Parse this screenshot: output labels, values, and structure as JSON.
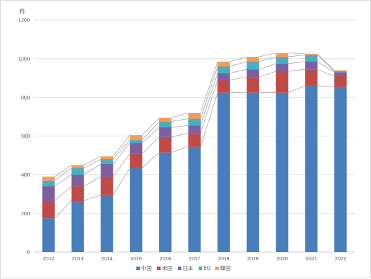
{
  "chart_data": {
    "type": "bar",
    "stacked": true,
    "title": "",
    "ylabel": "件",
    "xlabel": "",
    "ylim": [
      0,
      1200
    ],
    "yticks": [
      0,
      200,
      400,
      600,
      800,
      1000,
      1200
    ],
    "grid": true,
    "legend_position": "bottom",
    "connector_lines": true,
    "categories": [
      "2012",
      "2013",
      "2014",
      "2015",
      "2016",
      "2017",
      "2018",
      "2019",
      "2020",
      "2021",
      "2022"
    ],
    "series": [
      {
        "name": "中国",
        "color": "#4a7ebb",
        "values": [
          175,
          265,
          295,
          435,
          515,
          545,
          825,
          825,
          825,
          860,
          855
        ]
      },
      {
        "name": "米国",
        "color": "#be4b48",
        "values": [
          90,
          75,
          95,
          75,
          80,
          70,
          65,
          80,
          110,
          85,
          55
        ]
      },
      {
        "name": "日本",
        "color": "#7d5fa0",
        "values": [
          75,
          60,
          65,
          55,
          50,
          40,
          35,
          40,
          40,
          40,
          20
        ]
      },
      {
        "name": "EU",
        "color": "#4bacc6",
        "values": [
          30,
          35,
          25,
          15,
          30,
          35,
          35,
          40,
          35,
          35,
          5
        ]
      },
      {
        "name": "韓国",
        "color": "#f59d56",
        "values": [
          20,
          15,
          15,
          25,
          20,
          30,
          25,
          25,
          20,
          5,
          5
        ]
      }
    ]
  }
}
